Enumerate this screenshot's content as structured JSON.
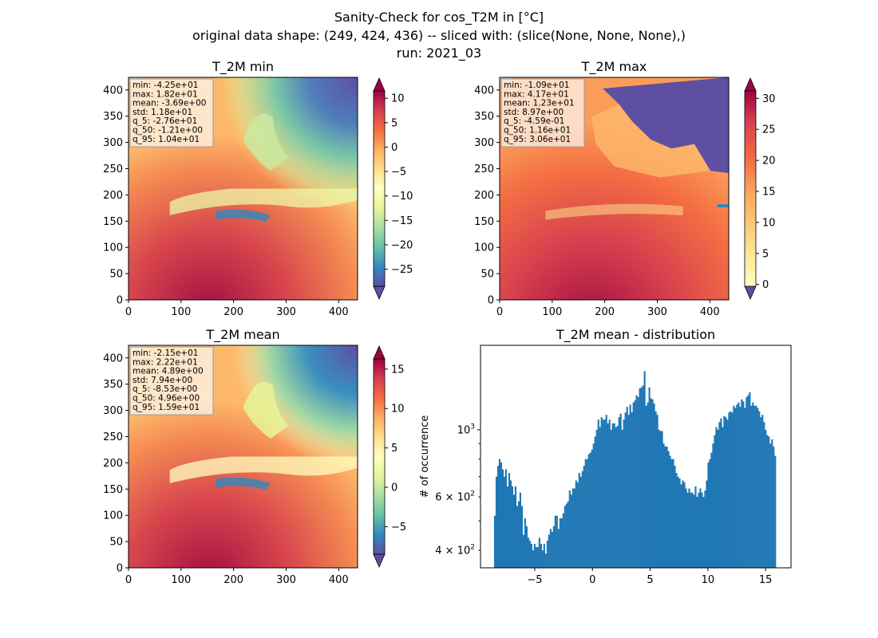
{
  "figure": {
    "title_lines": [
      "Sanity-Check for cos_T2M in [°C]",
      "original data shape: (249, 424, 436) -- sliced with: (slice(None, None, None),)",
      "run: 2021_03"
    ]
  },
  "chart_data": [
    {
      "type": "heatmap",
      "title": "T_2M min",
      "xlim": [
        0,
        436
      ],
      "ylim": [
        0,
        424
      ],
      "xticks": [
        0,
        100,
        200,
        300,
        400
      ],
      "yticks": [
        0,
        50,
        100,
        150,
        200,
        250,
        300,
        350,
        400
      ],
      "colormap": "Spectral_r",
      "colorbar": {
        "ticks": [
          10,
          5,
          0,
          -5,
          -10,
          -15,
          -20,
          -25
        ],
        "tick_labels": [
          "10",
          "5",
          "0",
          "−5",
          "−10",
          "−15",
          "−20",
          "−25"
        ],
        "range": [
          -28.5,
          11.5
        ]
      },
      "stats_box": [
        "min: -4.25e+01",
        "max: 1.82e+01",
        "mean: -3.69e+00",
        "std: 1.18e+01",
        "q_5: -2.76e+01",
        "q_50: -1.21e+00",
        "q_95: 1.04e+01"
      ]
    },
    {
      "type": "heatmap",
      "title": "T_2M max",
      "xlim": [
        0,
        436
      ],
      "ylim": [
        0,
        424
      ],
      "xticks": [
        0,
        100,
        200,
        300,
        400
      ],
      "yticks": [
        0,
        50,
        100,
        150,
        200,
        250,
        300,
        350,
        400
      ],
      "colormap": "Spectral_r",
      "colorbar": {
        "ticks": [
          30,
          25,
          20,
          15,
          10,
          5,
          0
        ],
        "tick_labels": [
          "30",
          "25",
          "20",
          "15",
          "10",
          "5",
          "0"
        ],
        "range": [
          -0.3,
          31.2
        ]
      },
      "stats_box": [
        "min: -1.09e+01",
        "max: 4.17e+01",
        "mean: 1.23e+01",
        "std: 8.97e+00",
        "q_5: -4.59e-01",
        "q_50: 1.16e+01",
        "q_95: 3.06e+01"
      ]
    },
    {
      "type": "heatmap",
      "title": "T_2M mean",
      "xlim": [
        0,
        436
      ],
      "ylim": [
        0,
        424
      ],
      "xticks": [
        0,
        100,
        200,
        300,
        400
      ],
      "yticks": [
        0,
        50,
        100,
        150,
        200,
        250,
        300,
        350,
        400
      ],
      "colormap": "Spectral_r",
      "colorbar": {
        "ticks": [
          15,
          10,
          5,
          0,
          -5
        ],
        "tick_labels": [
          "15",
          "10",
          "5",
          "0",
          "−5"
        ],
        "range": [
          -8.5,
          16.3
        ]
      },
      "stats_box": [
        "min: -2.15e+01",
        "max: 2.22e+01",
        "mean: 4.89e+00",
        "std: 7.94e+00",
        "q_5: -8.53e+00",
        "q_50: 4.96e+00",
        "q_95: 1.59e+01"
      ]
    },
    {
      "type": "bar",
      "title": "T_2M mean - distribution",
      "ylabel": "# of occurrence",
      "yscale": "log",
      "xlim": [
        -9.7,
        17.2
      ],
      "ylim": [
        350,
        1900
      ],
      "xticks": [
        -5,
        0,
        5,
        10,
        15
      ],
      "xtick_labels": [
        "−5",
        "0",
        "5",
        "10",
        "15"
      ],
      "ytick_labels": [
        {
          "value": 1000,
          "base": "10",
          "exp": "3"
        },
        {
          "value": 600,
          "base": "6 × 10",
          "exp": "2"
        },
        {
          "value": 400,
          "base": "4 × 10",
          "exp": "2"
        }
      ],
      "color": "#1f77b4",
      "bins": {
        "start": -8.53,
        "end": 15.9
      },
      "values": [
        520,
        700,
        760,
        800,
        780,
        740,
        700,
        740,
        650,
        720,
        680,
        650,
        610,
        650,
        560,
        580,
        620,
        560,
        450,
        510,
        480,
        440,
        430,
        420,
        400,
        420,
        410,
        410,
        440,
        420,
        400,
        420,
        390,
        430,
        450,
        470,
        460,
        480,
        520,
        520,
        470,
        510,
        510,
        530,
        560,
        570,
        580,
        630,
        610,
        640,
        640,
        680,
        670,
        720,
        700,
        730,
        760,
        800,
        800,
        830,
        840,
        860,
        900,
        950,
        1000,
        1080,
        1020,
        1100,
        1080,
        1080,
        1120,
        1050,
        1080,
        1000,
        1050,
        1050,
        1020,
        1030,
        1100,
        1130,
        1000,
        1080,
        1140,
        1190,
        1120,
        1210,
        1140,
        1230,
        1250,
        1300,
        1280,
        1370,
        1380,
        1400,
        1560,
        1200,
        1230,
        1380,
        1270,
        1260,
        1220,
        1150,
        1120,
        1000,
        990,
        990,
        900,
        880,
        880,
        850,
        820,
        800,
        800,
        760,
        720,
        700,
        690,
        660,
        680,
        670,
        640,
        620,
        640,
        620,
        620,
        610,
        650,
        600,
        620,
        640,
        620,
        600,
        630,
        680,
        780,
        800,
        840,
        900,
        960,
        1020,
        1000,
        1060,
        1090,
        1020,
        1110,
        1100,
        1080,
        1140,
        1150,
        1140,
        1200,
        1180,
        1210,
        1230,
        1190,
        1260,
        1240,
        1180,
        1280,
        1300,
        1330,
        1200,
        1230,
        1200,
        1200,
        1180,
        1150,
        1100,
        1120,
        1060,
        1000,
        960,
        950,
        900,
        930,
        880,
        820
      ]
    }
  ]
}
